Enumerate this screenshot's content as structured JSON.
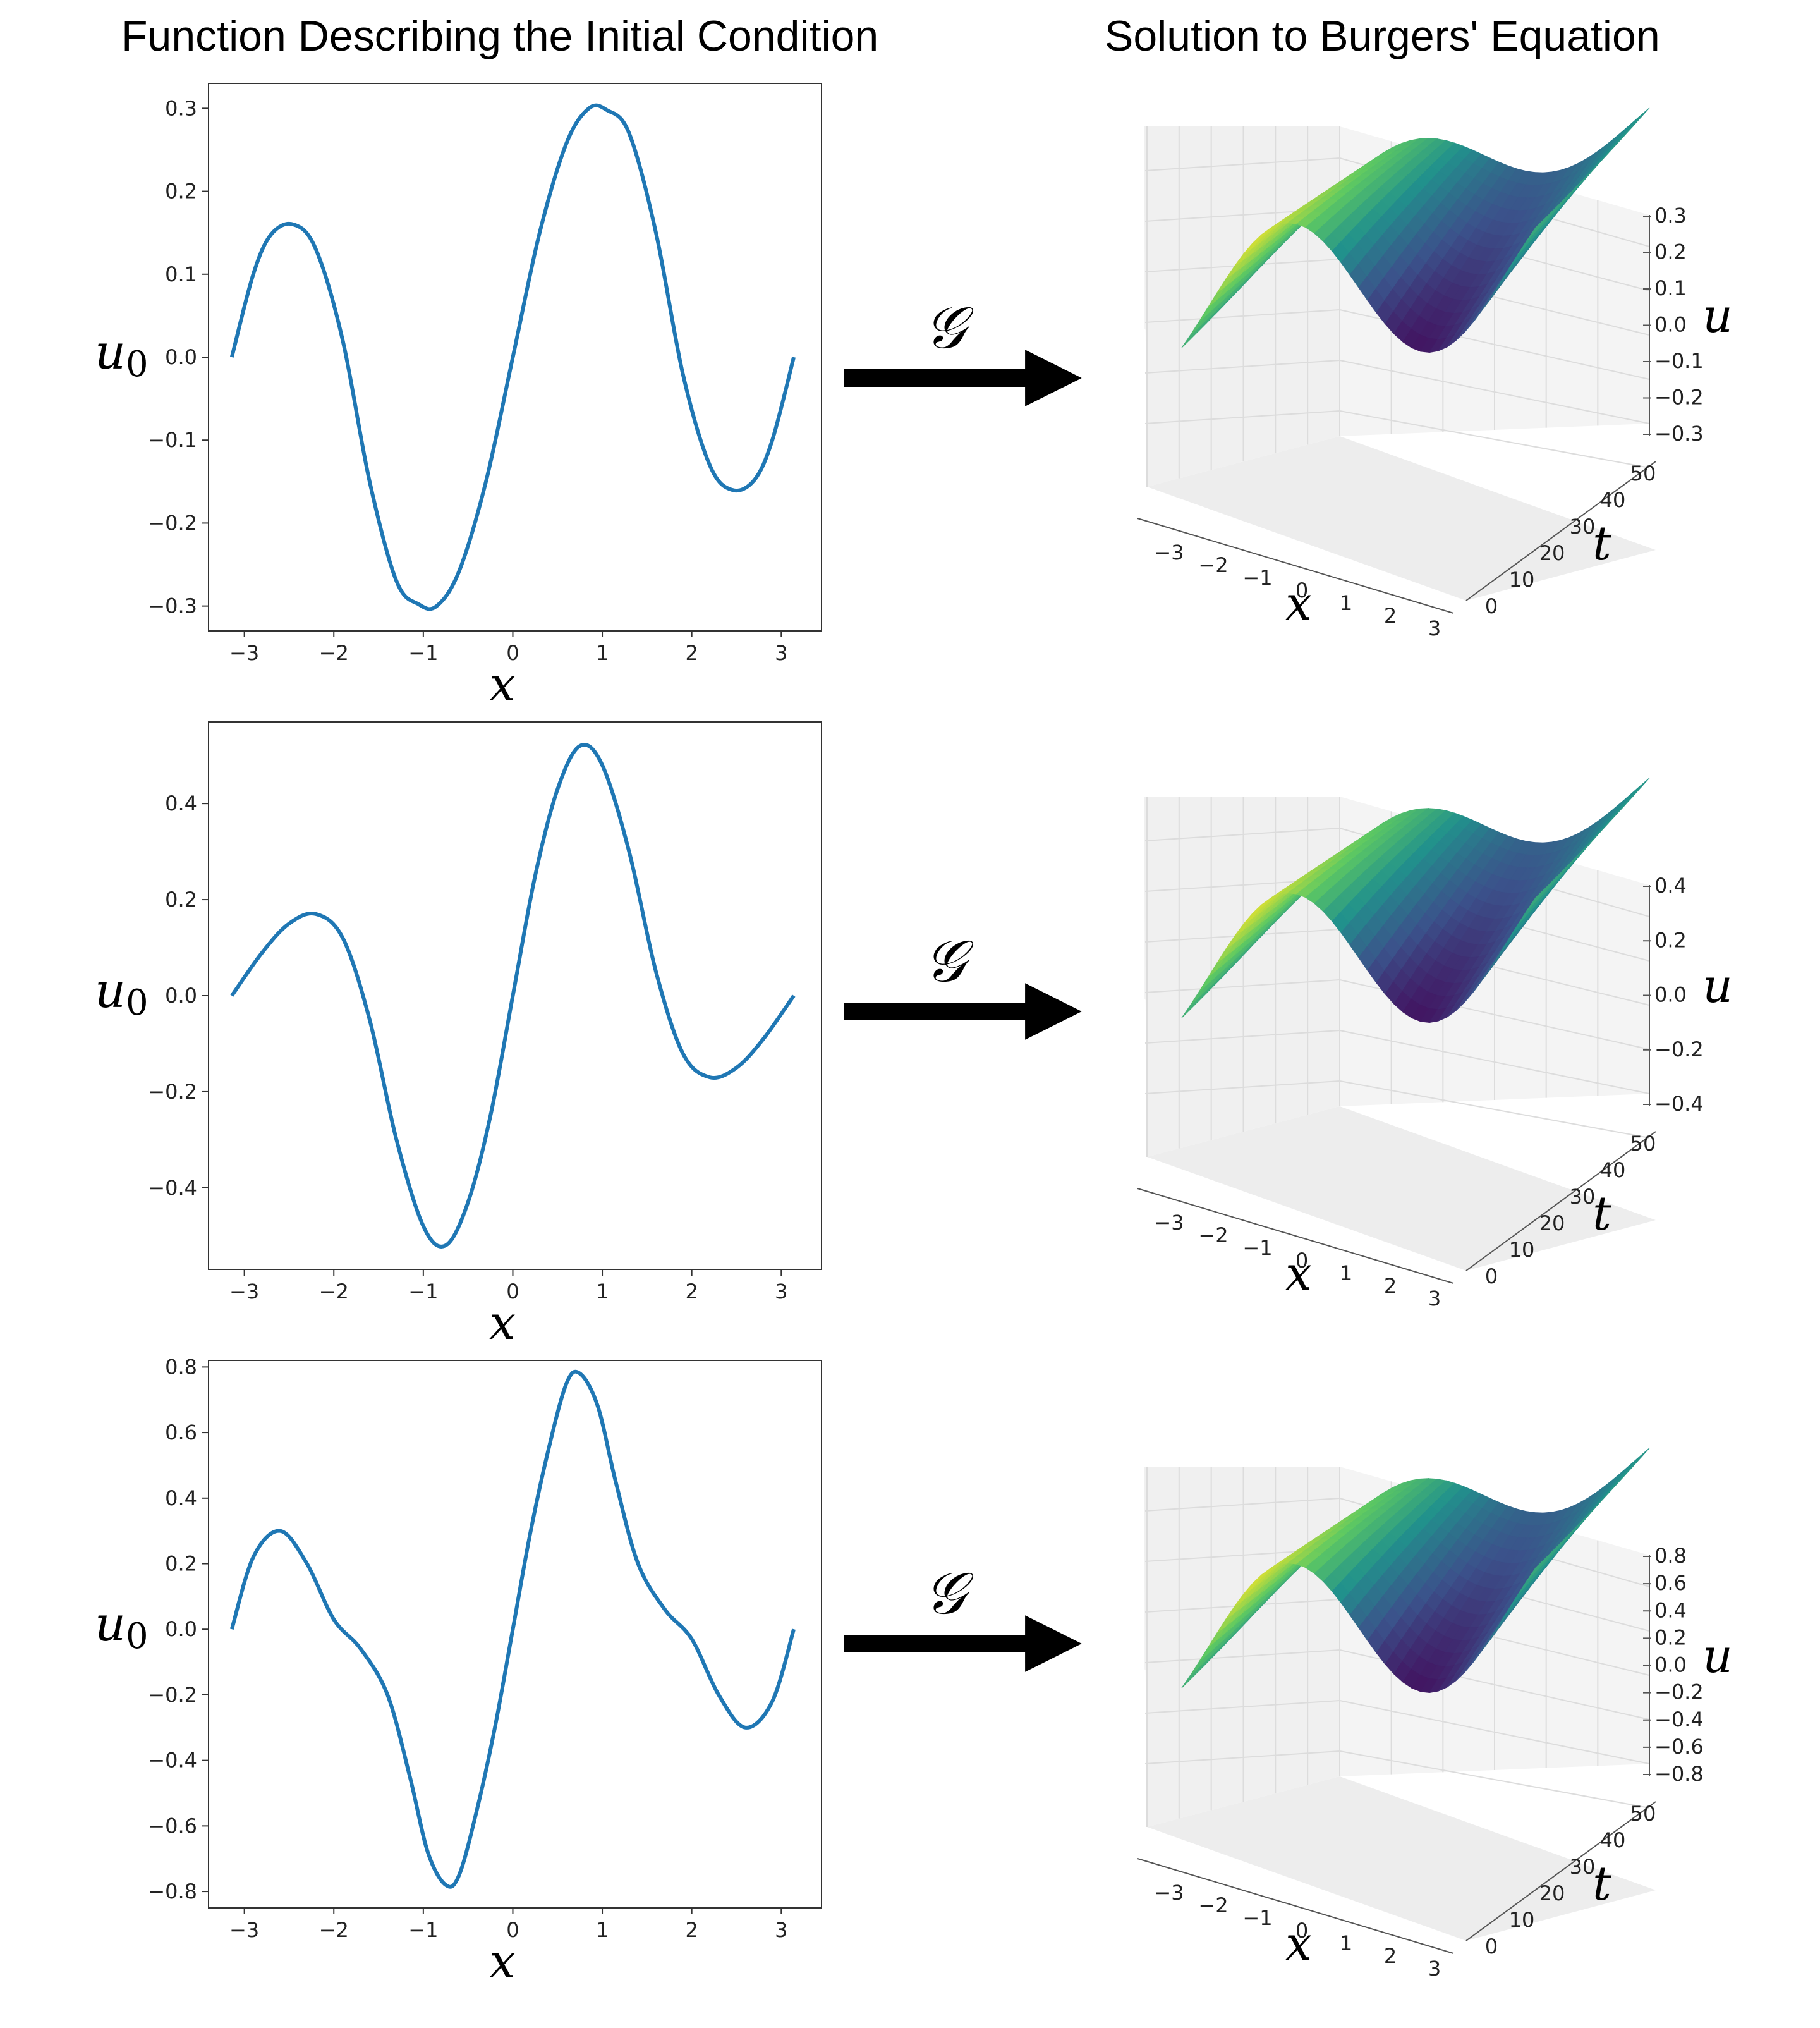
{
  "titles": {
    "left": "Function Describing the Initial Condition",
    "right": "Solution to Burgers' Equation"
  },
  "operator_symbol": "𝒢",
  "surface_colormap": [
    "#440154",
    "#3b528b",
    "#21918c",
    "#5ec962",
    "#fde725"
  ],
  "line_color": "#1f77b4",
  "chart_data": [
    {
      "type": "line",
      "xlabel": "x",
      "ylabel": "u0",
      "xlim": [
        -3.4,
        3.45
      ],
      "ylim": [
        -0.33,
        0.33
      ],
      "xticks": [
        "−3",
        "−2",
        "−1",
        "0",
        "1",
        "2",
        "3"
      ],
      "yticks": [
        "−0.3",
        "−0.2",
        "−0.1",
        "0.0",
        "0.1",
        "0.2",
        "0.3"
      ],
      "ytick_values": [
        -0.3,
        -0.2,
        -0.1,
        0.0,
        0.1,
        0.2,
        0.3
      ],
      "series": [
        {
          "x": [
            -3.14,
            -2.9,
            -2.7,
            -2.45,
            -2.2,
            -1.9,
            -1.6,
            -1.3,
            -1.05,
            -0.85,
            -0.6,
            -0.3,
            0,
            0.3,
            0.6,
            0.85,
            1.05,
            1.3,
            1.6,
            1.9,
            2.2,
            2.45,
            2.7,
            2.9,
            3.14
          ],
          "y": [
            0.0,
            0.1,
            0.148,
            0.16,
            0.13,
            0.02,
            -0.15,
            -0.27,
            -0.298,
            -0.3,
            -0.258,
            -0.15,
            0.0,
            0.15,
            0.258,
            0.3,
            0.298,
            0.27,
            0.15,
            -0.02,
            -0.13,
            -0.16,
            -0.148,
            -0.1,
            0.0
          ]
        }
      ],
      "surface": {
        "zlabel": "u",
        "tlabel": "t",
        "xlabel": "x",
        "zticks": [
          "0.3",
          "0.2",
          "0.1",
          "0.0",
          "−0.1",
          "−0.2",
          "−0.3"
        ],
        "tticks": [
          "0",
          "10",
          "20",
          "30",
          "40",
          "50"
        ],
        "xticks": [
          "−3",
          "−2",
          "−1",
          "0",
          "1",
          "2",
          "3"
        ]
      }
    },
    {
      "type": "line",
      "xlabel": "x",
      "ylabel": "u0",
      "xlim": [
        -3.4,
        3.45
      ],
      "ylim": [
        -0.57,
        0.57
      ],
      "xticks": [
        "−3",
        "−2",
        "−1",
        "0",
        "1",
        "2",
        "3"
      ],
      "yticks": [
        "−0.4",
        "−0.2",
        "0.0",
        "0.2",
        "0.4"
      ],
      "ytick_values": [
        -0.4,
        -0.2,
        0.0,
        0.2,
        0.4
      ],
      "series": [
        {
          "x": [
            -3.14,
            -2.8,
            -2.5,
            -2.2,
            -1.9,
            -1.6,
            -1.3,
            -1.0,
            -0.75,
            -0.5,
            -0.25,
            0,
            0.25,
            0.5,
            0.75,
            1.0,
            1.3,
            1.6,
            1.9,
            2.2,
            2.5,
            2.8,
            3.14
          ],
          "y": [
            0.0,
            0.09,
            0.15,
            0.17,
            0.12,
            -0.05,
            -0.3,
            -0.48,
            -0.52,
            -0.43,
            -0.25,
            0.0,
            0.25,
            0.43,
            0.52,
            0.48,
            0.3,
            0.05,
            -0.12,
            -0.17,
            -0.15,
            -0.09,
            0.0
          ]
        }
      ],
      "surface": {
        "zlabel": "u",
        "tlabel": "t",
        "xlabel": "x",
        "zticks": [
          "0.4",
          "0.2",
          "0.0",
          "−0.2",
          "−0.4"
        ],
        "tticks": [
          "0",
          "10",
          "20",
          "30",
          "40",
          "50"
        ],
        "xticks": [
          "−3",
          "−2",
          "−1",
          "0",
          "1",
          "2",
          "3"
        ]
      }
    },
    {
      "type": "line",
      "xlabel": "x",
      "ylabel": "u0",
      "xlim": [
        -3.4,
        3.45
      ],
      "ylim": [
        -0.85,
        0.82
      ],
      "xticks": [
        "−3",
        "−2",
        "−1",
        "0",
        "1",
        "2",
        "3"
      ],
      "yticks": [
        "−0.8",
        "−0.6",
        "−0.4",
        "−0.2",
        "0.0",
        "0.2",
        "0.4",
        "0.6",
        "0.8"
      ],
      "ytick_values": [
        -0.8,
        -0.6,
        -0.4,
        -0.2,
        0.0,
        0.2,
        0.4,
        0.6,
        0.8
      ],
      "series": [
        {
          "x": [
            -3.14,
            -2.9,
            -2.6,
            -2.3,
            -2.0,
            -1.7,
            -1.4,
            -1.15,
            -0.95,
            -0.75,
            -0.6,
            -0.4,
            -0.2,
            0,
            0.2,
            0.4,
            0.6,
            0.75,
            0.95,
            1.15,
            1.4,
            1.7,
            2.0,
            2.3,
            2.6,
            2.9,
            3.14
          ],
          "y": [
            0.0,
            0.22,
            0.3,
            0.2,
            0.03,
            -0.06,
            -0.2,
            -0.45,
            -0.68,
            -0.78,
            -0.75,
            -0.55,
            -0.3,
            0.0,
            0.3,
            0.55,
            0.75,
            0.78,
            0.68,
            0.45,
            0.2,
            0.06,
            -0.03,
            -0.2,
            -0.3,
            -0.22,
            0.0
          ]
        }
      ],
      "surface": {
        "zlabel": "u",
        "tlabel": "t",
        "xlabel": "x",
        "zticks": [
          "0.8",
          "0.6",
          "0.4",
          "0.2",
          "0.0",
          "−0.2",
          "−0.4",
          "−0.6",
          "−0.8"
        ],
        "tticks": [
          "0",
          "10",
          "20",
          "30",
          "40",
          "50"
        ],
        "xticks": [
          "−3",
          "−2",
          "−1",
          "0",
          "1",
          "2",
          "3"
        ]
      }
    }
  ]
}
